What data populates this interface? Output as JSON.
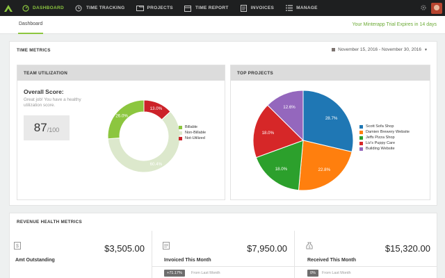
{
  "nav": {
    "items": [
      {
        "label": "DASHBOARD",
        "icon": "speedometer-icon",
        "active": true
      },
      {
        "label": "TIME TRACKING",
        "icon": "clock-icon"
      },
      {
        "label": "PROJECTS",
        "icon": "folder-icon"
      },
      {
        "label": "TIME REPORT",
        "icon": "calendar-icon"
      },
      {
        "label": "INVOICES",
        "icon": "document-icon"
      },
      {
        "label": "MANAGE",
        "icon": "list-icon"
      }
    ],
    "accent_color": "#8cc63f"
  },
  "subheader": {
    "tab": "Dashboard",
    "trial_notice": "Your Minterapp Trial Expires in 14 days"
  },
  "time_metrics": {
    "title": "TIME METRICS",
    "date_range": "November 15, 2016 - November 30, 2016"
  },
  "team_utilization": {
    "title": "TEAM UTILIZATION",
    "overall_label": "Overall Score:",
    "overall_desc": "Great job! You have a healthy utilization score.",
    "score": "87",
    "score_max": "/100"
  },
  "top_projects": {
    "title": "TOP PROJECTS"
  },
  "chart_data": [
    {
      "type": "pie",
      "variant": "donut",
      "categories": [
        "Billable",
        "Non-Billable",
        "Not-Utilized"
      ],
      "values": [
        26.0,
        60.4,
        13.0
      ],
      "labels": [
        "26.0%",
        "60.4%",
        "13.0%"
      ],
      "colors": [
        "#8cc63f",
        "#dce8cc",
        "#cc2229"
      ],
      "legend": "right"
    },
    {
      "type": "pie",
      "categories": [
        "Scott Sofa Shop",
        "Damien Brewery Website",
        "Jeffs Pizza Shop",
        "Liz's Puppy Care",
        "Building Website"
      ],
      "values": [
        28.7,
        22.8,
        18.0,
        18.0,
        12.6
      ],
      "labels": [
        "28.7%",
        "22.8%",
        "18.0%",
        "18.0%",
        "12.6%"
      ],
      "colors": [
        "#1f77b4",
        "#ff7f0e",
        "#2ca02c",
        "#d62728",
        "#9467bd"
      ],
      "order": [
        0,
        1,
        2,
        3,
        4
      ],
      "legend": "right"
    }
  ],
  "revenue": {
    "title": "REVENUE HEALTH METRICS",
    "cells": [
      {
        "label": "Amt Outstanding",
        "amount": "$3,505.00",
        "icon": "invoice-dollar-icon"
      },
      {
        "label": "Invoiced This Month",
        "amount": "$7,950.00",
        "icon": "document-icon",
        "badge": "+71.17%",
        "from": "From Last Month"
      },
      {
        "label": "Received This Month",
        "amount": "$15,320.00",
        "icon": "money-bag-icon",
        "badge": "0%",
        "from": "From Last Month"
      }
    ]
  }
}
